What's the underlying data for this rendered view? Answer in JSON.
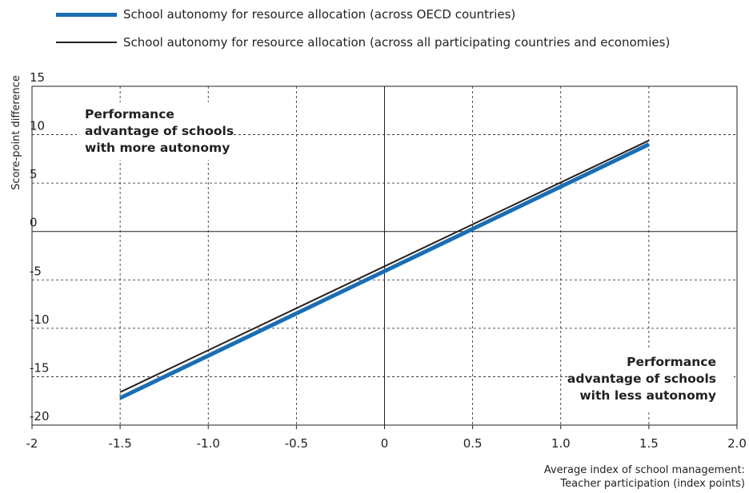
{
  "legend": [
    {
      "label": "School autonomy for resource allocation (across OECD countries)",
      "color": "#1a6db5",
      "style": "thick"
    },
    {
      "label": "School autonomy for resource allocation (across all participating countries and economies)",
      "color": "#231f20",
      "style": "thin"
    }
  ],
  "chart_data": {
    "type": "line",
    "title": "",
    "ylabel": "Score-point difference",
    "xlabel_lines": [
      "Average index of school management:",
      "Teacher participation (index points)"
    ],
    "xlim": [
      -2,
      2
    ],
    "ylim": [
      -20,
      15
    ],
    "xticks": [
      -2,
      -1.5,
      -1,
      -0.5,
      0,
      0.5,
      1,
      1.5,
      2
    ],
    "xtick_labels": [
      "-2",
      "-1.5",
      "-1.0",
      "-0.5",
      "0",
      "0.5",
      "1.0",
      "1.5",
      "2.0"
    ],
    "yticks": [
      15,
      10,
      5,
      0,
      -5,
      -10,
      -15,
      -20
    ],
    "ytick_labels": [
      "15",
      "10",
      "5",
      "0",
      "-5",
      "-10",
      "-15",
      "-20"
    ],
    "grid": true,
    "series": [
      {
        "name": "School autonomy for resource allocation (across OECD countries)",
        "x": [
          -1.5,
          1.5
        ],
        "y": [
          -17.2,
          9.0
        ],
        "color": "#1a6db5",
        "width": 5
      },
      {
        "name": "School autonomy for resource allocation (across all participating countries and economies)",
        "x": [
          -1.5,
          1.5
        ],
        "y": [
          -16.6,
          9.4
        ],
        "color": "#231f20",
        "width": 2
      }
    ],
    "annotations": [
      {
        "lines": [
          "Performance",
          "advantage of schools",
          "with more autonomy"
        ],
        "position": "top-left"
      },
      {
        "lines": [
          "Performance",
          "advantage of schools",
          "with less autonomy"
        ],
        "position": "bottom-right"
      }
    ]
  }
}
